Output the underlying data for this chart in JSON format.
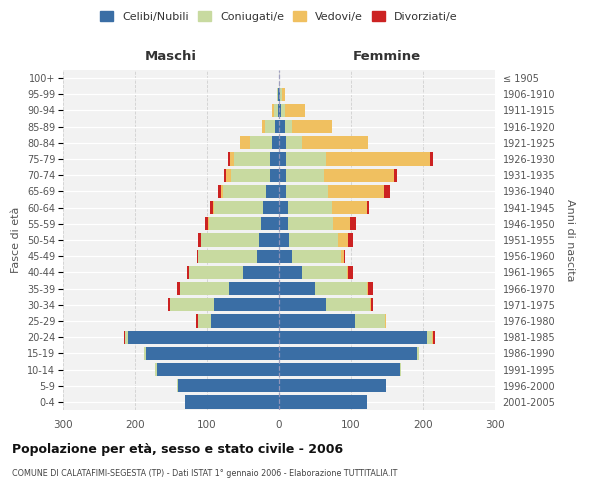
{
  "age_groups": [
    "100+",
    "95-99",
    "90-94",
    "85-89",
    "80-84",
    "75-79",
    "70-74",
    "65-69",
    "60-64",
    "55-59",
    "50-54",
    "45-49",
    "40-44",
    "35-39",
    "30-34",
    "25-29",
    "20-24",
    "15-19",
    "10-14",
    "5-9",
    "0-4"
  ],
  "birth_years": [
    "≤ 1905",
    "1906-1910",
    "1911-1915",
    "1916-1920",
    "1921-1925",
    "1926-1930",
    "1931-1935",
    "1936-1940",
    "1941-1945",
    "1946-1950",
    "1951-1955",
    "1956-1960",
    "1961-1965",
    "1966-1970",
    "1971-1975",
    "1976-1980",
    "1981-1985",
    "1986-1990",
    "1991-1995",
    "1996-2000",
    "2001-2005"
  ],
  "maschi_celibi": [
    0,
    1,
    2,
    5,
    10,
    12,
    12,
    18,
    22,
    25,
    28,
    30,
    50,
    70,
    90,
    95,
    210,
    185,
    170,
    140,
    130
  ],
  "maschi_coniugati": [
    0,
    2,
    5,
    15,
    30,
    50,
    55,
    60,
    68,
    72,
    80,
    82,
    75,
    68,
    62,
    18,
    4,
    2,
    2,
    1,
    0
  ],
  "maschi_vedovi": [
    0,
    0,
    3,
    4,
    14,
    6,
    6,
    3,
    2,
    2,
    1,
    1,
    0,
    0,
    0,
    0,
    0,
    0,
    0,
    0,
    0
  ],
  "maschi_divorziati": [
    0,
    0,
    0,
    0,
    0,
    3,
    3,
    4,
    4,
    4,
    3,
    1,
    3,
    3,
    2,
    2,
    1,
    0,
    0,
    0,
    0
  ],
  "femmine_celibi": [
    0,
    2,
    3,
    8,
    10,
    10,
    10,
    10,
    12,
    12,
    14,
    18,
    32,
    50,
    65,
    105,
    205,
    192,
    168,
    148,
    122
  ],
  "femmine_coniugati": [
    0,
    2,
    5,
    10,
    22,
    55,
    52,
    58,
    62,
    63,
    68,
    68,
    62,
    72,
    62,
    42,
    8,
    2,
    2,
    1,
    0
  ],
  "femmine_vedovi": [
    0,
    5,
    28,
    55,
    92,
    145,
    98,
    78,
    48,
    24,
    14,
    4,
    2,
    2,
    1,
    1,
    1,
    0,
    0,
    0,
    0
  ],
  "femmine_divorziati": [
    0,
    0,
    0,
    0,
    0,
    4,
    4,
    8,
    3,
    8,
    7,
    2,
    7,
    7,
    3,
    1,
    3,
    0,
    0,
    0,
    0
  ],
  "color_celibi": "#3a6ea5",
  "color_coniugati": "#c8daa0",
  "color_vedovi": "#f0c060",
  "color_divorziati": "#cc2222",
  "xlim": 300,
  "title": "Popolazione per età, sesso e stato civile - 2006",
  "subtitle": "COMUNE DI CALATAFIMI-SEGESTA (TP) - Dati ISTAT 1° gennaio 2006 - Elaborazione TUTTITALIA.IT",
  "ylabel_left": "Fasce di età",
  "ylabel_right": "Anni di nascita",
  "xlabel_maschi": "Maschi",
  "xlabel_femmine": "Femmine",
  "bg_color": "#ffffff",
  "plot_bg": "#f2f2f2",
  "grid_color": "#cccccc"
}
